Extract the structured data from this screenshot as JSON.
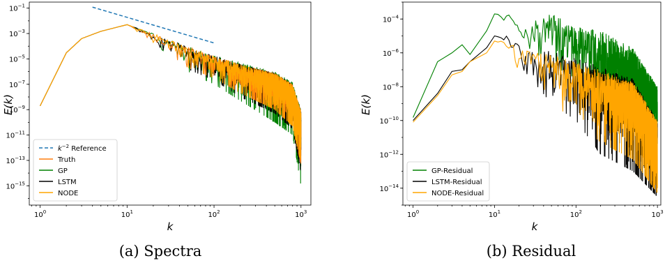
{
  "chart_data": [
    {
      "type": "line",
      "panel_caption": "(a) Spectra",
      "xlabel": "k",
      "ylabel": "E(k)",
      "xscale": "log",
      "yscale": "log",
      "xlim": [
        0.75,
        1300
      ],
      "ylim": [
        3e-17,
        0.3
      ],
      "xticks": [
        {
          "v": 1,
          "e": "0"
        },
        {
          "v": 10,
          "e": "1"
        },
        {
          "v": 100,
          "e": "2"
        },
        {
          "v": 1000,
          "e": "3"
        }
      ],
      "yticks": [
        {
          "v": 0.1,
          "e": "−1"
        },
        {
          "v": 0.001,
          "e": "−3"
        },
        {
          "v": 1e-05,
          "e": "−5"
        },
        {
          "v": 1e-07,
          "e": "−7"
        },
        {
          "v": 1e-09,
          "e": "−9"
        },
        {
          "v": 1e-11,
          "e": "−11"
        },
        {
          "v": 1e-13,
          "e": "−13"
        },
        {
          "v": 1e-15,
          "e": "−15"
        }
      ],
      "legend_position": "lower-left",
      "legend": [
        {
          "label": "k^{-2} Reference",
          "color": "#1f77b4",
          "dash": true
        },
        {
          "label": "Truth",
          "color": "#ff7f0e"
        },
        {
          "label": "GP",
          "color": "#008000"
        },
        {
          "label": "LSTM",
          "color": "#000000"
        },
        {
          "label": "NODE",
          "color": "#ffa500"
        }
      ],
      "reference_line": {
        "x": [
          4,
          100
        ],
        "y": [
          0.12,
          0.00018
        ],
        "color": "#1f77b4"
      },
      "series": [
        {
          "name": "GP",
          "color": "#008000",
          "envelope_x": [
            1,
            2,
            3,
            5,
            10,
            20,
            50,
            100,
            200,
            500,
            800,
            1000
          ],
          "envelope_hi": [
            2e-09,
            3e-05,
            0.0004,
            0.0015,
            0.005,
            0.001,
            0.0001,
            2e-05,
            5e-06,
            1e-06,
            1.5e-07,
            1e-09
          ],
          "envelope_lo": [
            2e-09,
            3e-05,
            0.0004,
            0.0015,
            0.005,
            0.0002,
            1e-06,
            1e-07,
            5e-09,
            1e-10,
            1e-11,
            1e-15
          ]
        },
        {
          "name": "LSTM",
          "color": "#000000",
          "envelope_x": [
            1,
            2,
            3,
            5,
            10,
            20,
            50,
            100,
            200,
            500,
            800,
            1000
          ],
          "envelope_hi": [
            2e-09,
            3e-05,
            0.0004,
            0.0015,
            0.005,
            0.001,
            9e-05,
            1.8e-05,
            4e-06,
            8e-07,
            1e-07,
            8e-10
          ],
          "envelope_lo": [
            2e-09,
            3e-05,
            0.0004,
            0.0015,
            0.005,
            0.0002,
            1.5e-06,
            2e-07,
            1e-08,
            5e-10,
            3e-11,
            1e-14
          ]
        },
        {
          "name": "Truth",
          "color": "#ff7f0e",
          "envelope_x": [
            1,
            2,
            3,
            5,
            10,
            20,
            50,
            100,
            200,
            500,
            800,
            1000
          ],
          "envelope_hi": [
            2e-09,
            3e-05,
            0.0004,
            0.0015,
            0.005,
            0.001,
            9e-05,
            1.8e-05,
            4e-06,
            8e-07,
            1e-07,
            8e-10
          ],
          "envelope_lo": [
            2e-09,
            3e-05,
            0.0004,
            0.0015,
            0.005,
            0.0002,
            2e-06,
            3e-07,
            2e-08,
            1e-09,
            5e-11,
            5e-14
          ]
        },
        {
          "name": "NODE",
          "color": "#ffa500",
          "envelope_x": [
            1,
            2,
            3,
            5,
            10,
            20,
            50,
            100,
            200,
            500,
            800,
            1000
          ],
          "envelope_hi": [
            2e-09,
            3e-05,
            0.0004,
            0.0015,
            0.005,
            0.001,
            9e-05,
            1.8e-05,
            4e-06,
            8e-07,
            1e-07,
            8e-10
          ],
          "envelope_lo": [
            2e-09,
            3e-05,
            0.0004,
            0.0015,
            0.005,
            0.0002,
            2e-06,
            3e-07,
            2e-08,
            1e-09,
            5e-11,
            5e-14
          ]
        }
      ]
    },
    {
      "type": "line",
      "panel_caption": "(b) Residual",
      "xlabel": "k",
      "ylabel": "E(k)",
      "xscale": "log",
      "yscale": "log",
      "xlim": [
        0.75,
        1100
      ],
      "ylim": [
        1e-15,
        0.001
      ],
      "xticks": [
        {
          "v": 1,
          "e": "0"
        },
        {
          "v": 10,
          "e": "1"
        },
        {
          "v": 100,
          "e": "2"
        },
        {
          "v": 1000,
          "e": "3"
        }
      ],
      "yticks": [
        {
          "v": 0.0001,
          "e": "−4"
        },
        {
          "v": 1e-06,
          "e": "−6"
        },
        {
          "v": 1e-08,
          "e": "−8"
        },
        {
          "v": 1e-10,
          "e": "−10"
        },
        {
          "v": 1e-12,
          "e": "−12"
        },
        {
          "v": 1e-14,
          "e": "−14"
        }
      ],
      "legend_position": "lower-left",
      "legend": [
        {
          "label": "GP-Residual",
          "color": "#008000"
        },
        {
          "label": "LSTM-Residual",
          "color": "#000000"
        },
        {
          "label": "NODE-Residual",
          "color": "#ffa500"
        }
      ],
      "series": [
        {
          "name": "GP-Residual",
          "color": "#008000",
          "envelope_x": [
            1,
            2,
            3,
            4,
            5,
            8,
            10,
            15,
            20,
            50,
            100,
            200,
            500,
            1000
          ],
          "envelope_hi": [
            1.5e-10,
            3e-07,
            1e-06,
            3e-06,
            8e-07,
            2e-05,
            0.0002,
            0.0002,
            4e-05,
            0.0002,
            4e-05,
            2e-05,
            2e-06,
            1e-08
          ],
          "envelope_lo": [
            1.5e-10,
            3e-07,
            1e-06,
            3e-06,
            8e-07,
            2e-05,
            0.0002,
            4e-05,
            5e-06,
            2e-07,
            3e-08,
            1e-09,
            1e-10,
            5e-12
          ]
        },
        {
          "name": "LSTM-Residual",
          "color": "#000000",
          "envelope_x": [
            1,
            2,
            3,
            4,
            5,
            8,
            10,
            15,
            20,
            50,
            100,
            200,
            500,
            1000
          ],
          "envelope_hi": [
            1e-10,
            4e-09,
            8e-08,
            1e-07,
            3e-07,
            2e-06,
            1e-05,
            1e-05,
            3e-06,
            1.5e-06,
            5e-07,
            1.5e-07,
            3e-08,
            1e-10
          ],
          "envelope_lo": [
            1e-10,
            4e-09,
            8e-08,
            1e-07,
            3e-07,
            2e-06,
            1e-05,
            1e-06,
            2e-07,
            1e-09,
            1e-10,
            1e-12,
            1e-13,
            3e-15
          ]
        },
        {
          "name": "NODE-Residual",
          "color": "#ffa500",
          "envelope_x": [
            1,
            2,
            3,
            4,
            5,
            8,
            10,
            15,
            20,
            50,
            100,
            200,
            500,
            1000
          ],
          "envelope_hi": [
            8e-11,
            3e-09,
            5e-08,
            8e-08,
            3e-07,
            1e-06,
            5e-06,
            5e-06,
            1.5e-06,
            8e-07,
            3e-07,
            1e-07,
            2e-08,
            1e-10
          ],
          "envelope_lo": [
            8e-11,
            3e-09,
            5e-08,
            8e-08,
            3e-07,
            1e-06,
            5e-06,
            5e-07,
            1e-07,
            1e-09,
            1e-10,
            5e-12,
            5e-13,
            5e-15
          ]
        }
      ]
    }
  ]
}
